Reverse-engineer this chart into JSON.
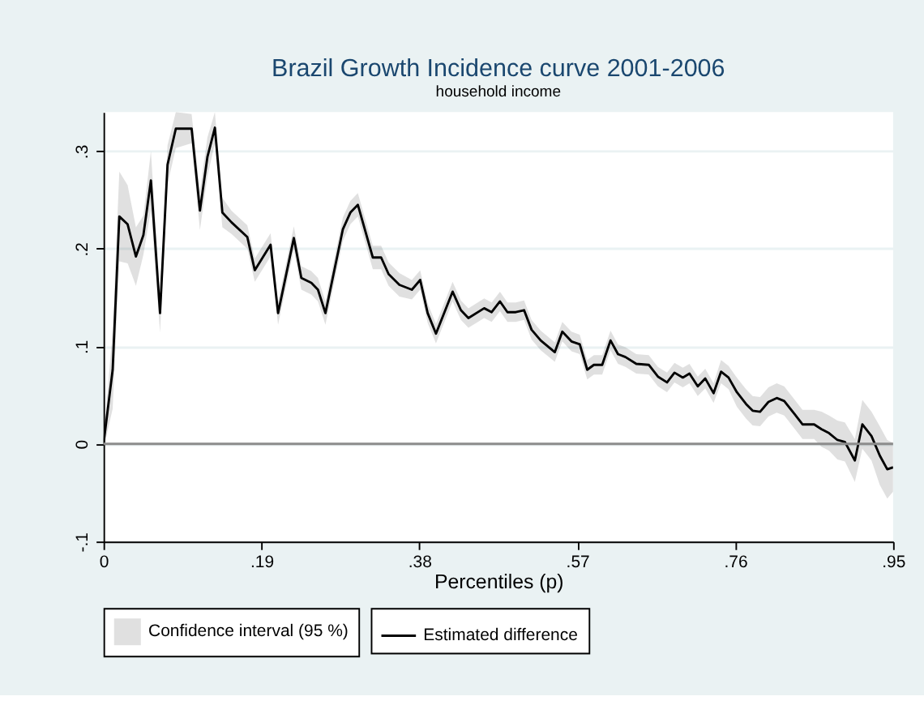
{
  "chart_data": {
    "type": "line",
    "title": "Brazil Growth Incidence curve 2001-2006",
    "subtitle": "household income",
    "xlabel": "Percentiles (p)",
    "xlim": [
      0,
      0.95
    ],
    "ylim": [
      -0.1,
      0.34
    ],
    "xticks": [
      0,
      {
        "value": 0.19,
        "label": ".19"
      },
      {
        "value": 0.38,
        "label": ".38"
      },
      {
        "value": 0.57,
        "label": ".57"
      },
      {
        "value": 0.76,
        "label": ".76"
      },
      {
        "value": 0.95,
        "label": ".95"
      }
    ],
    "yticks": [
      {
        "value": -0.1,
        "label": "-.1"
      },
      0,
      {
        "value": 0.1,
        "label": ".1"
      },
      {
        "value": 0.2,
        "label": ".2"
      },
      {
        "value": 0.3,
        "label": ".3"
      }
    ],
    "grid": "y",
    "legend": "bottom",
    "marker": "none",
    "line_style": "solid",
    "annotations": [
      "Confidence interval (95 %)"
    ],
    "ref_lines": [
      {
        "axis": "y",
        "value": 0,
        "color": "#8c8c8c"
      }
    ],
    "series": [
      {
        "name": "Estimated difference",
        "color": "#000000",
        "x": [
          0,
          0.011,
          0.019,
          0.029,
          0.039,
          0.048,
          0.057,
          0.068,
          0.077,
          0.087,
          0.106,
          0.116,
          0.125,
          0.134,
          0.143,
          0.154,
          0.173,
          0.182,
          0.201,
          0.21,
          0.229,
          0.238,
          0.25,
          0.258,
          0.267,
          0.288,
          0.297,
          0.306,
          0.324,
          0.334,
          0.343,
          0.356,
          0.371,
          0.381,
          0.39,
          0.4,
          0.42,
          0.43,
          0.439,
          0.458,
          0.467,
          0.477,
          0.486,
          0.496,
          0.506,
          0.515,
          0.526,
          0.543,
          0.552,
          0.563,
          0.573,
          0.582,
          0.59,
          0.6,
          0.61,
          0.619,
          0.628,
          0.641,
          0.656,
          0.667,
          0.678,
          0.687,
          0.697,
          0.705,
          0.715,
          0.724,
          0.734,
          0.743,
          0.752,
          0.762,
          0.773,
          0.781,
          0.79,
          0.8,
          0.81,
          0.819,
          0.831,
          0.841,
          0.855,
          0.864,
          0.873,
          0.883,
          0.892,
          0.904,
          0.913,
          0.924,
          0.934,
          0.943,
          0.95
        ],
        "values": [
          0,
          0.076,
          0.233,
          0.225,
          0.192,
          0.214,
          0.27,
          0.134,
          0.286,
          0.323,
          0.323,
          0.239,
          0.294,
          0.324,
          0.237,
          0.227,
          0.212,
          0.178,
          0.204,
          0.134,
          0.211,
          0.17,
          0.165,
          0.158,
          0.134,
          0.22,
          0.237,
          0.245,
          0.191,
          0.191,
          0.174,
          0.163,
          0.158,
          0.168,
          0.134,
          0.113,
          0.156,
          0.137,
          0.129,
          0.139,
          0.135,
          0.146,
          0.135,
          0.135,
          0.137,
          0.117,
          0.106,
          0.094,
          0.115,
          0.105,
          0.102,
          0.076,
          0.081,
          0.081,
          0.106,
          0.092,
          0.089,
          0.082,
          0.081,
          0.069,
          0.063,
          0.073,
          0.068,
          0.072,
          0.059,
          0.067,
          0.052,
          0.074,
          0.068,
          0.053,
          0.041,
          0.034,
          0.033,
          0.043,
          0.047,
          0.044,
          0.031,
          0.02,
          0.02,
          0.015,
          0.011,
          0.004,
          0.002,
          -0.017,
          0.02,
          0.008,
          -0.012,
          -0.026,
          -0.024
        ],
        "lower": [
          -0.005,
          0.036,
          0.187,
          0.185,
          0.162,
          0.194,
          0.24,
          0.114,
          0.266,
          0.303,
          0.308,
          0.219,
          0.274,
          0.308,
          0.222,
          0.215,
          0.2,
          0.166,
          0.192,
          0.122,
          0.199,
          0.158,
          0.153,
          0.146,
          0.122,
          0.208,
          0.225,
          0.233,
          0.179,
          0.179,
          0.162,
          0.151,
          0.148,
          0.158,
          0.124,
          0.103,
          0.146,
          0.127,
          0.119,
          0.129,
          0.125,
          0.136,
          0.125,
          0.125,
          0.127,
          0.107,
          0.096,
          0.084,
          0.105,
          0.095,
          0.092,
          0.066,
          0.071,
          0.071,
          0.096,
          0.082,
          0.079,
          0.072,
          0.071,
          0.059,
          0.053,
          0.063,
          0.058,
          0.062,
          0.049,
          0.057,
          0.042,
          0.062,
          0.056,
          0.038,
          0.026,
          0.019,
          0.018,
          0.028,
          0.032,
          0.029,
          0.016,
          0.005,
          0.005,
          -0.003,
          -0.007,
          -0.016,
          -0.018,
          -0.039,
          -0.005,
          -0.017,
          -0.042,
          -0.056,
          -0.049
        ],
        "upper": [
          0.005,
          0.116,
          0.279,
          0.265,
          0.222,
          0.234,
          0.3,
          0.154,
          0.306,
          0.34,
          0.338,
          0.259,
          0.314,
          0.34,
          0.252,
          0.239,
          0.224,
          0.19,
          0.216,
          0.146,
          0.223,
          0.182,
          0.177,
          0.17,
          0.146,
          0.232,
          0.249,
          0.257,
          0.203,
          0.203,
          0.186,
          0.175,
          0.168,
          0.178,
          0.144,
          0.123,
          0.166,
          0.147,
          0.139,
          0.149,
          0.145,
          0.156,
          0.145,
          0.145,
          0.147,
          0.127,
          0.116,
          0.104,
          0.125,
          0.115,
          0.112,
          0.086,
          0.091,
          0.091,
          0.116,
          0.102,
          0.099,
          0.092,
          0.091,
          0.079,
          0.073,
          0.083,
          0.078,
          0.082,
          0.069,
          0.077,
          0.062,
          0.086,
          0.08,
          0.068,
          0.056,
          0.049,
          0.048,
          0.058,
          0.062,
          0.059,
          0.046,
          0.035,
          0.035,
          0.033,
          0.029,
          0.024,
          0.022,
          0.005,
          0.045,
          0.033,
          0.018,
          0.004,
          0.001
        ]
      }
    ]
  }
}
